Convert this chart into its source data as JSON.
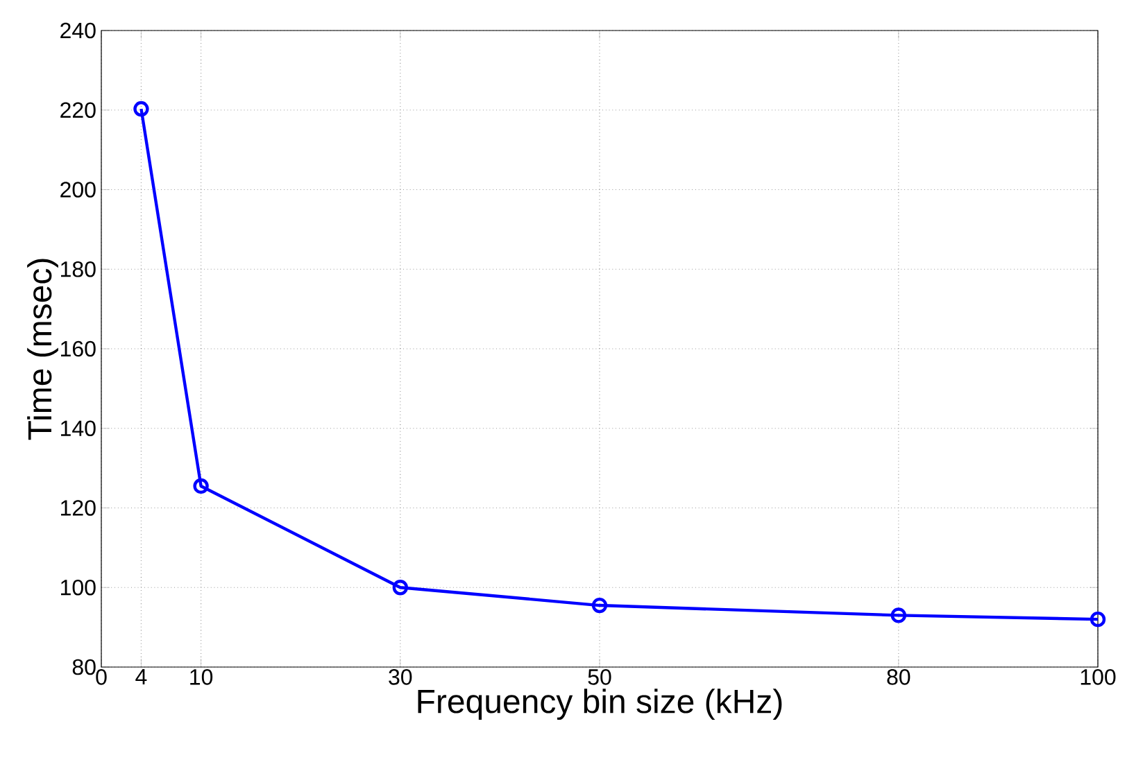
{
  "chart_data": {
    "type": "line",
    "xlabel": "Frequency bin size (kHz)",
    "ylabel": "Time (msec)",
    "x": [
      4,
      10,
      30,
      50,
      80,
      100
    ],
    "series": [
      {
        "color": "#0000ff",
        "values": [
          220.3,
          125.5,
          100,
          95.5,
          93,
          92
        ]
      }
    ],
    "xlim": [
      0,
      100
    ],
    "ylim": [
      80,
      240
    ],
    "xticks": [
      0,
      4,
      10,
      30,
      50,
      80,
      100
    ],
    "yticks": [
      80,
      100,
      120,
      140,
      160,
      180,
      200,
      220,
      240
    ],
    "grid": true,
    "marker": "circle",
    "line_style": "solid"
  }
}
